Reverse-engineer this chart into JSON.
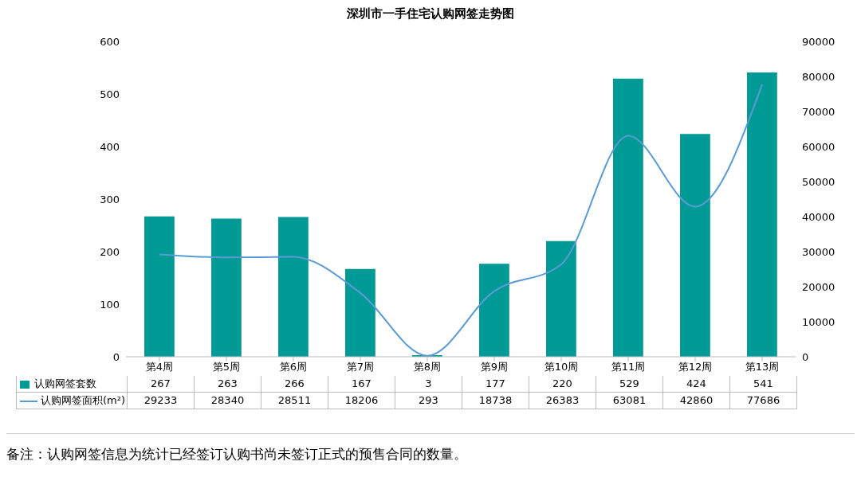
{
  "chart_data": {
    "type": "bar",
    "title": "深圳市一手住宅认购网签走势图",
    "categories": [
      "第4周",
      "第5周",
      "第6周",
      "第7周",
      "第8周",
      "第9周",
      "第10周",
      "第11周",
      "第12周",
      "第13周"
    ],
    "series": [
      {
        "name": "认购网签套数",
        "color": "#009a96",
        "values": [
          267,
          263,
          266,
          167,
          3,
          177,
          220,
          529,
          424,
          541
        ]
      },
      {
        "name": "认购网签面积(m²)",
        "type": "line",
        "axis": "y2",
        "color": "#5b9bd5",
        "values": [
          29233,
          28340,
          28511,
          18206,
          293,
          18738,
          26383,
          63081,
          42860,
          77686
        ]
      }
    ],
    "ylim": [
      0,
      600
    ],
    "yticks": [
      0,
      100,
      200,
      300,
      400,
      500,
      600
    ],
    "y2lim": [
      0,
      90000
    ],
    "y2ticks": [
      0,
      10000,
      20000,
      30000,
      40000,
      50000,
      60000,
      70000,
      80000,
      90000
    ],
    "grid": false,
    "legend": "bottom",
    "data_labels": true,
    "marker": "none",
    "line_style": "solid",
    "annotations": [
      "备注：认购网签信息为统计已经签订认购书尚未签订正式的预售合同的数量。"
    ]
  }
}
